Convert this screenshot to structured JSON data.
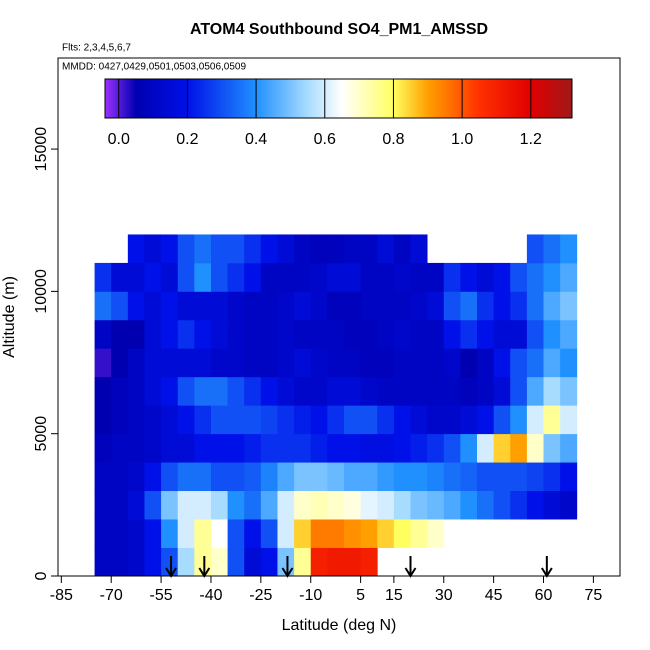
{
  "chart_data": {
    "type": "heatmap",
    "title": "ATOM4 Southbound SO4_PM1_AMSSD",
    "subtitle": "Flts: 2,3,4,5,6,7",
    "annotation": "MMDD: 0427,0429,0501,0503,0506,0509",
    "xlabel": "Latitude (deg N)",
    "ylabel": "Altitude (m)",
    "xlim": [
      -86,
      83
    ],
    "ylim": [
      0,
      18200
    ],
    "xticks": [
      -85,
      -70,
      -55,
      -40,
      -25,
      -10,
      5,
      15,
      30,
      45,
      60,
      75
    ],
    "yticks": [
      0,
      5000,
      10000,
      15000
    ],
    "xbins": [
      -75,
      -70,
      -65,
      -60,
      -55,
      -50,
      -45,
      -40,
      -35,
      -30,
      -25,
      -20,
      -15,
      -10,
      -5,
      0,
      5,
      10,
      15,
      20,
      25,
      30,
      35,
      40,
      45,
      50,
      55,
      60,
      65,
      70
    ],
    "ybins": [
      0,
      1000,
      2000,
      3000,
      4000,
      5000,
      6000,
      7000,
      8000,
      9000,
      10000,
      11000,
      12000
    ],
    "values": [
      [
        0.1,
        0.1,
        0.12,
        0.2,
        0.3,
        0.55,
        0.75,
        0.7,
        0.3,
        0.15,
        0.2,
        0.5,
        0.75,
        1.1,
        1.12,
        1.12,
        1.1,
        null,
        null,
        null,
        null,
        null,
        null,
        null,
        null,
        null,
        null,
        null,
        null
      ],
      [
        0.1,
        0.1,
        0.12,
        0.2,
        0.4,
        0.6,
        0.75,
        0.65,
        0.3,
        0.2,
        0.3,
        0.6,
        0.85,
        0.95,
        0.95,
        0.92,
        0.9,
        0.85,
        0.8,
        0.75,
        0.7,
        null,
        null,
        null,
        null,
        null,
        null,
        null,
        null
      ],
      [
        0.1,
        0.1,
        0.15,
        0.3,
        0.5,
        0.6,
        0.6,
        0.55,
        0.4,
        0.35,
        0.45,
        0.6,
        0.7,
        0.72,
        0.7,
        0.68,
        0.62,
        0.6,
        0.55,
        0.5,
        0.48,
        0.45,
        0.4,
        0.35,
        0.3,
        0.25,
        0.2,
        0.15,
        0.12
      ],
      [
        0.1,
        0.1,
        0.12,
        0.2,
        0.3,
        0.35,
        0.35,
        0.3,
        0.3,
        0.32,
        0.38,
        0.45,
        0.5,
        0.5,
        0.48,
        0.45,
        0.45,
        0.42,
        0.4,
        0.4,
        0.38,
        0.35,
        0.33,
        0.3,
        0.3,
        0.3,
        0.28,
        0.25,
        0.2
      ],
      [
        0.08,
        0.1,
        0.1,
        0.12,
        0.15,
        0.15,
        0.2,
        0.2,
        0.2,
        0.22,
        0.25,
        0.25,
        0.25,
        0.22,
        0.2,
        0.2,
        0.18,
        0.18,
        0.2,
        0.22,
        0.25,
        0.3,
        0.4,
        0.6,
        0.85,
        0.9,
        0.7,
        0.5,
        0.45
      ],
      [
        0.05,
        0.08,
        0.1,
        0.12,
        0.15,
        0.2,
        0.25,
        0.3,
        0.3,
        0.3,
        0.28,
        0.25,
        0.22,
        0.2,
        0.25,
        0.3,
        0.3,
        0.25,
        0.2,
        0.15,
        0.12,
        0.12,
        0.15,
        0.2,
        0.3,
        0.4,
        0.6,
        0.75,
        0.6
      ],
      [
        0.05,
        0.08,
        0.1,
        0.15,
        0.2,
        0.3,
        0.35,
        0.35,
        0.3,
        0.25,
        0.2,
        0.15,
        0.12,
        0.12,
        0.15,
        0.15,
        0.12,
        0.1,
        0.1,
        0.1,
        0.1,
        0.1,
        0.08,
        0.1,
        0.15,
        0.3,
        0.45,
        0.55,
        0.5
      ],
      [
        0.02,
        0.05,
        0.1,
        0.15,
        0.15,
        0.15,
        0.15,
        0.12,
        0.12,
        0.1,
        0.1,
        0.12,
        0.15,
        0.12,
        0.1,
        0.1,
        0.08,
        0.08,
        0.1,
        0.1,
        0.1,
        0.12,
        0.05,
        0.1,
        0.2,
        0.3,
        0.35,
        0.45,
        0.4
      ],
      [
        0.1,
        0.05,
        0.05,
        0.15,
        0.2,
        0.25,
        0.2,
        0.15,
        0.12,
        0.1,
        0.1,
        0.12,
        0.1,
        0.1,
        0.1,
        0.08,
        0.08,
        0.1,
        0.12,
        0.1,
        0.1,
        0.2,
        0.25,
        0.2,
        0.15,
        0.15,
        0.3,
        0.4,
        0.45
      ],
      [
        0.35,
        0.3,
        0.2,
        0.15,
        0.2,
        0.15,
        0.15,
        0.15,
        0.12,
        0.1,
        0.1,
        0.12,
        0.15,
        0.12,
        0.08,
        0.08,
        0.1,
        0.1,
        0.1,
        0.12,
        0.15,
        0.3,
        0.35,
        0.25,
        0.2,
        0.25,
        0.35,
        0.45,
        0.5
      ],
      [
        0.25,
        0.15,
        0.15,
        0.2,
        0.15,
        0.3,
        0.4,
        0.3,
        0.25,
        0.2,
        0.1,
        0.1,
        0.1,
        0.12,
        0.15,
        0.15,
        0.1,
        0.1,
        0.12,
        0.1,
        0.1,
        0.25,
        0.2,
        0.15,
        0.2,
        0.3,
        0.35,
        0.4,
        0.45
      ],
      [
        null,
        null,
        0.2,
        0.15,
        0.2,
        0.3,
        0.35,
        0.3,
        0.3,
        0.25,
        0.2,
        0.15,
        0.1,
        0.08,
        0.08,
        0.1,
        0.1,
        0.15,
        0.1,
        0.15,
        null,
        null,
        null,
        null,
        null,
        null,
        0.3,
        0.35,
        0.4
      ]
    ],
    "arrows": [
      -52,
      -42,
      -17,
      20,
      61
    ],
    "colorbar": {
      "range": [
        -0.04,
        1.32
      ],
      "ticks": [
        {
          "value": 0,
          "label": "0.0"
        },
        0.2,
        0.4,
        0.6,
        0.8,
        {
          "value": 1,
          "label": "1.0"
        },
        1.2
      ],
      "stops": [
        {
          "value": -0.04,
          "color": "#9b30ff"
        },
        {
          "value": 0.05,
          "color": "#0000b0"
        },
        {
          "value": 0.2,
          "color": "#0010e8"
        },
        {
          "value": 0.4,
          "color": "#2090ff"
        },
        {
          "value": 0.55,
          "color": "#a8dcff"
        },
        {
          "value": 0.65,
          "color": "#ffffff"
        },
        {
          "value": 0.8,
          "color": "#ffff60"
        },
        {
          "value": 0.9,
          "color": "#ffa000"
        },
        {
          "value": 1.05,
          "color": "#ff3000"
        },
        {
          "value": 1.2,
          "color": "#e00000"
        },
        {
          "value": 1.32,
          "color": "#a01818"
        }
      ]
    }
  }
}
